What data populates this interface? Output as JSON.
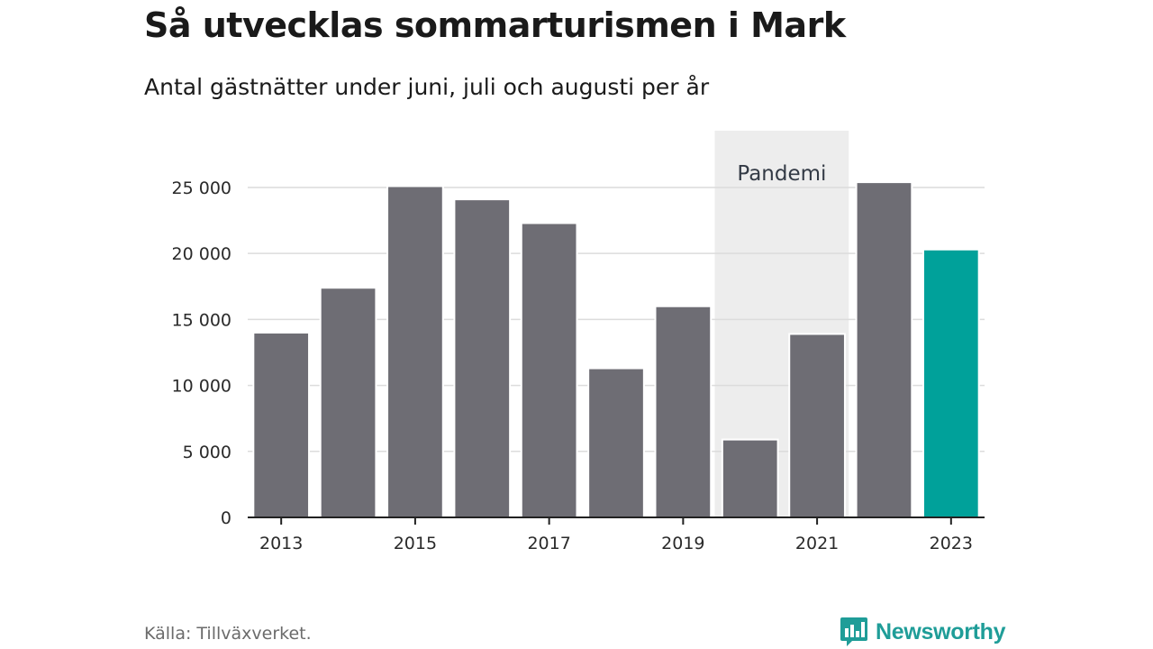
{
  "chart_data": {
    "type": "bar",
    "title": "Så utvecklas sommarturismen i Mark",
    "subtitle": "Antal gästnätter under juni, juli och augusti per år",
    "categories": [
      "2013",
      "2014",
      "2015",
      "2016",
      "2017",
      "2018",
      "2019",
      "2020",
      "2021",
      "2022",
      "2023"
    ],
    "values": [
      14000,
      17400,
      25100,
      24100,
      22300,
      11300,
      16000,
      5900,
      13900,
      25400,
      20300
    ],
    "x_tick_labels": [
      "2013",
      "2015",
      "2017",
      "2019",
      "2021",
      "2023"
    ],
    "y_ticks": [
      0,
      5000,
      10000,
      15000,
      20000,
      25000
    ],
    "y_tick_labels": [
      "0",
      "5 000",
      "10 000",
      "15 000",
      "20 000",
      "25 000"
    ],
    "ylim": [
      0,
      29300
    ],
    "highlight": {
      "label": "Pandemi",
      "from": "2020",
      "to": "2021"
    },
    "colors": {
      "bar": "#6e6d74",
      "highlight_bar": "#00a19a",
      "band": "#ededed",
      "grid": "#dcdcdc",
      "axis": "#222222"
    },
    "highlight_bar_category": "2023",
    "grid": true,
    "legend": "none"
  },
  "source": "Källa: Tillväxverket.",
  "brand": {
    "name": "Newsworthy",
    "icon": "newsworthy-logo-icon",
    "color": "#1f9d98"
  }
}
